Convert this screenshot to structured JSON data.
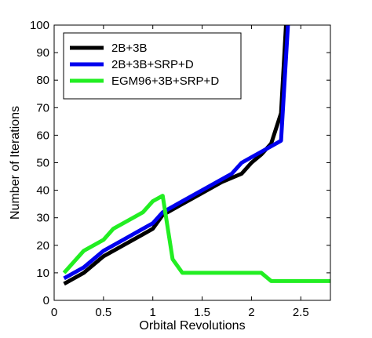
{
  "chart_data": {
    "type": "line",
    "title": "",
    "xlabel": "Orbital Revolutions",
    "ylabel": "Number of Iterations",
    "xlim": [
      0,
      2.8
    ],
    "ylim": [
      0,
      100
    ],
    "xticks": [
      0,
      0.5,
      1,
      1.5,
      2,
      2.5
    ],
    "xtick_labels": [
      "0",
      "0.5",
      "1",
      "1.5",
      "2",
      "2.5"
    ],
    "yticks": [
      0,
      10,
      20,
      30,
      40,
      50,
      60,
      70,
      80,
      90,
      100
    ],
    "ytick_labels": [
      "0",
      "10",
      "20",
      "30",
      "40",
      "50",
      "60",
      "70",
      "80",
      "90",
      "100"
    ],
    "grid": false,
    "legend_position": "top-left",
    "series": [
      {
        "name": "2B+3B",
        "color": "#000000",
        "x": [
          0.1,
          0.3,
          0.5,
          0.7,
          0.9,
          1.0,
          1.1,
          1.3,
          1.5,
          1.7,
          1.9,
          2.0,
          2.1,
          2.2,
          2.3,
          2.35
        ],
        "y": [
          6,
          10,
          16,
          20,
          24,
          26,
          31,
          35,
          39,
          43,
          46,
          50,
          53,
          57,
          68,
          100
        ]
      },
      {
        "name": "2B+3B+SRP+D",
        "color": "#0000ee",
        "x": [
          0.1,
          0.3,
          0.5,
          0.7,
          0.9,
          1.0,
          1.1,
          1.3,
          1.5,
          1.7,
          1.8,
          1.9,
          2.0,
          2.1,
          2.2,
          2.3,
          2.37
        ],
        "y": [
          8,
          12,
          18,
          22,
          26,
          28,
          32,
          36,
          40,
          44,
          46,
          50,
          52,
          54,
          56,
          58,
          100
        ]
      },
      {
        "name": "EGM96+3B+SRP+D",
        "color": "#22ee22",
        "x": [
          0.1,
          0.3,
          0.5,
          0.6,
          0.8,
          0.9,
          1.0,
          1.1,
          1.2,
          1.3,
          1.5,
          1.7,
          1.9,
          2.1,
          2.2,
          2.4,
          2.6,
          2.8
        ],
        "y": [
          10,
          18,
          22,
          26,
          30,
          32,
          36,
          38,
          15,
          10,
          10,
          10,
          10,
          10,
          7,
          7,
          7,
          7
        ]
      }
    ]
  }
}
